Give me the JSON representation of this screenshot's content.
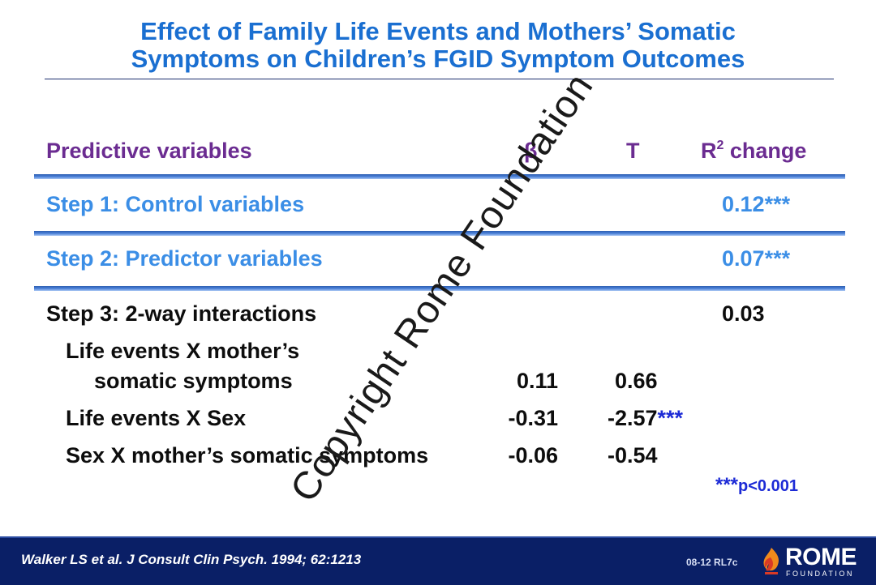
{
  "title": {
    "line1": "Effect of Family Life Events and Mothers’ Somatic",
    "line2": "Symptoms on Children’s FGID Symptom Outcomes"
  },
  "table": {
    "headers": {
      "variables": "Predictive variables",
      "beta": "β",
      "t": "T",
      "r2_base": "R",
      "r2_sup": "2",
      "r2_rest": " change"
    },
    "step1": {
      "label": "Step 1: Control variables",
      "r2": "0.12",
      "stars": "***"
    },
    "step2": {
      "label": "Step 2: Predictor variables",
      "r2": "0.07",
      "stars": "***"
    },
    "step3": {
      "label": "Step 3: 2-way interactions",
      "r2": "0.03"
    },
    "interactions": [
      {
        "label_line1": "Life events X mother’s",
        "label_line2": "somatic symptoms",
        "beta": "0.11",
        "t": "0.66",
        "stars": ""
      },
      {
        "label": "Life events X Sex",
        "beta": "-0.31",
        "t": "-2.57",
        "stars": "***"
      },
      {
        "label": "Sex X mother’s somatic symptoms",
        "beta": "-0.06",
        "t": "-0.54",
        "stars": ""
      }
    ]
  },
  "footnote": {
    "stars": "***",
    "text": "p<0.001"
  },
  "watermark": "Copyright Rome Foundation",
  "footer": {
    "citation": "Walker LS et al. J Consult Clin Psych. 1994; 62:1213",
    "slide_code": "08-12  RL7c",
    "logo_text": "ROME",
    "logo_sub": "FOUNDATION"
  },
  "colors": {
    "title": "#1a6fd1",
    "header": "#6b2c91",
    "step_blue": "#3b8ee6",
    "stars": "#1d2bd6",
    "footer_bg": "#0a1f66",
    "logo_orange": "#f08a1c",
    "logo_red": "#d93a26"
  }
}
